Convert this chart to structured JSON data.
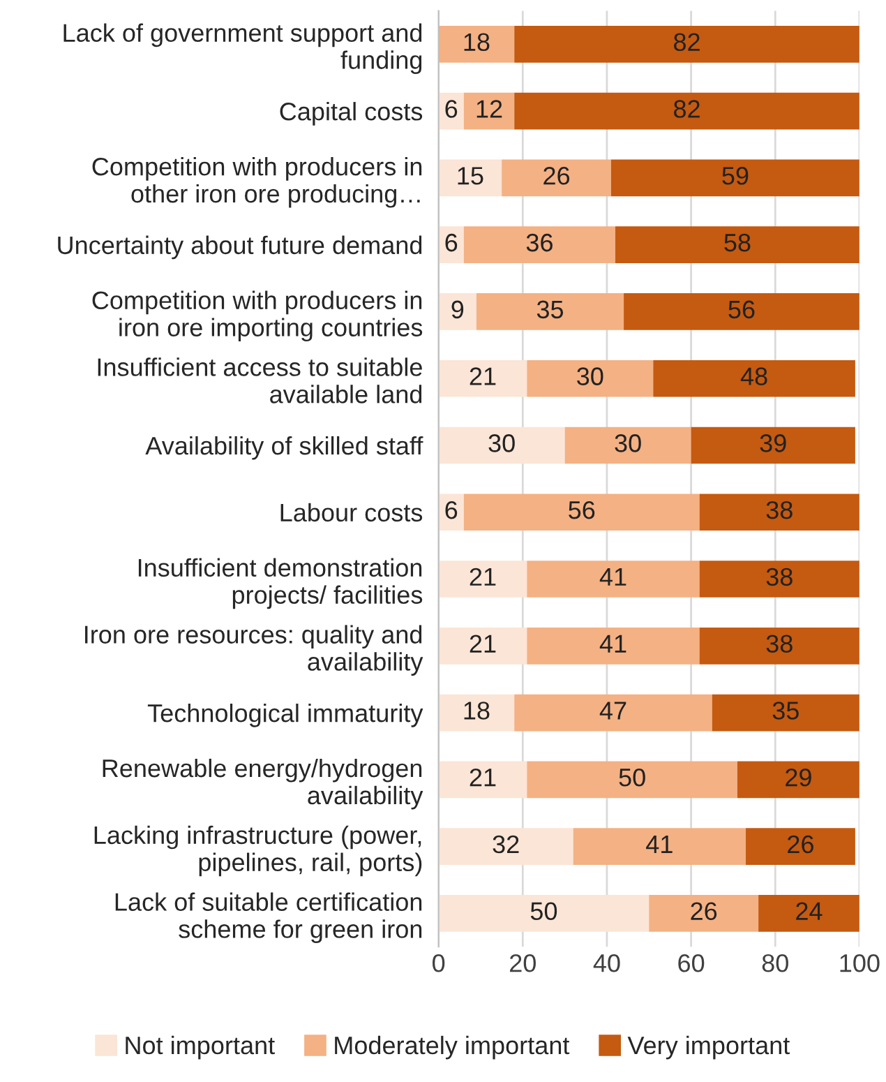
{
  "chart_data": {
    "type": "bar",
    "orientation": "horizontal",
    "stacked": true,
    "data_labels": true,
    "grid": "x",
    "legend": "bottom",
    "categories": [
      "Lack of government support and funding",
      "Capital costs",
      "Competition with producers in other iron ore producing…",
      "Uncertainty about future demand",
      "Competition with producers in iron ore importing countries",
      "Insufficient access to suitable available land",
      "Availability of skilled staff",
      "Labour costs",
      "Insufficient demonstration projects/ facilities",
      "Iron ore resources: quality and availability",
      "Technological immaturity",
      "Renewable energy/hydrogen availability",
      "Lacking infrastructure (power, pipelines, rail, ports)",
      "Lack of suitable certification scheme for green iron"
    ],
    "series": [
      {
        "name": "Not important",
        "color": "#fbe5d6",
        "values": [
          null,
          6,
          15,
          6,
          9,
          21,
          30,
          6,
          21,
          21,
          18,
          21,
          32,
          50
        ]
      },
      {
        "name": "Moderately important",
        "color": "#f4b183",
        "values": [
          18,
          12,
          26,
          36,
          35,
          30,
          30,
          56,
          41,
          41,
          47,
          50,
          41,
          26
        ]
      },
      {
        "name": "Very important",
        "color": "#c55a11",
        "values": [
          82,
          82,
          59,
          58,
          56,
          48,
          39,
          38,
          38,
          38,
          35,
          29,
          26,
          24
        ]
      }
    ],
    "xlim": [
      0,
      100
    ],
    "xticks": [
      0,
      20,
      40,
      60,
      80,
      100
    ]
  }
}
